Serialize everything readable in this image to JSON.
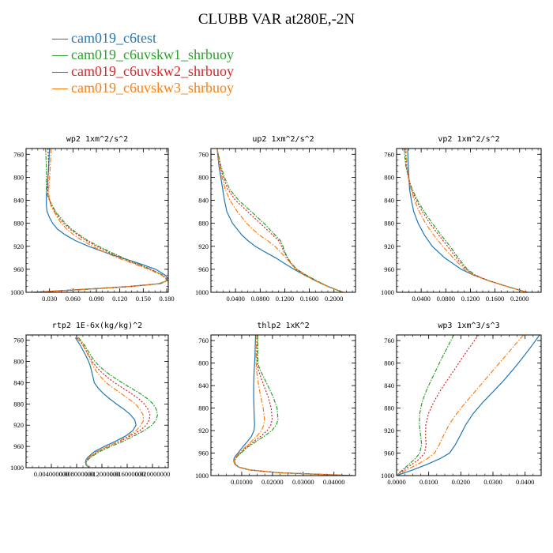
{
  "title": "CLUBB VAR at280E,-2N",
  "legend": [
    {
      "label": "cam019_c6test",
      "color": "#1f77b4"
    },
    {
      "label": "cam019_c6uvskw1_shrbuoy",
      "color": "#2ca02c"
    },
    {
      "label": "cam019_c6uvskw2_shrbuoy",
      "color": "#d62728"
    },
    {
      "label": "cam019_c6uvskw3_shrbuoy",
      "color": "#ff7f0e"
    }
  ],
  "chart_data": [
    {
      "type": "line",
      "title": "wp2   1xm^2/s^2",
      "xlim": [
        0.0,
        0.182
      ],
      "ylim": [
        1000,
        750
      ],
      "xticks": [
        "0.030",
        "0.060",
        "0.090",
        "0.120",
        "0.150",
        "0.180"
      ],
      "yticks": [
        "760",
        "800",
        "840",
        "880",
        "920",
        "960",
        "1000"
      ],
      "y": [
        750,
        780,
        800,
        820,
        830,
        840,
        850,
        860,
        870,
        880,
        890,
        900,
        910,
        920,
        930,
        940,
        950,
        960,
        970,
        975,
        980,
        985,
        990,
        995,
        1000
      ],
      "series": [
        {
          "name": "cam019_c6test",
          "values": [
            0.03,
            0.029,
            0.028,
            0.027,
            0.026,
            0.026,
            0.026,
            0.027,
            0.03,
            0.034,
            0.04,
            0.05,
            0.063,
            0.08,
            0.1,
            0.122,
            0.145,
            0.166,
            0.178,
            0.181,
            0.18,
            0.17,
            0.13,
            0.07,
            0.01
          ]
        },
        {
          "name": "cam019_c6uvskw1_shrbuoy",
          "values": [
            0.025,
            0.026,
            0.026,
            0.026,
            0.027,
            0.03,
            0.034,
            0.038,
            0.044,
            0.05,
            0.058,
            0.068,
            0.079,
            0.093,
            0.108,
            0.124,
            0.142,
            0.16,
            0.175,
            0.179,
            0.18,
            0.172,
            0.135,
            0.075,
            0.01
          ]
        },
        {
          "name": "cam019_c6uvskw2_shrbuoy",
          "values": [
            0.028,
            0.029,
            0.028,
            0.028,
            0.028,
            0.03,
            0.033,
            0.037,
            0.042,
            0.048,
            0.056,
            0.066,
            0.077,
            0.09,
            0.105,
            0.121,
            0.14,
            0.159,
            0.174,
            0.179,
            0.18,
            0.171,
            0.133,
            0.073,
            0.01
          ]
        },
        {
          "name": "cam019_c6uvskw3_shrbuoy",
          "values": [
            0.032,
            0.031,
            0.03,
            0.029,
            0.029,
            0.03,
            0.032,
            0.036,
            0.04,
            0.045,
            0.052,
            0.061,
            0.072,
            0.085,
            0.1,
            0.117,
            0.137,
            0.157,
            0.173,
            0.178,
            0.18,
            0.171,
            0.133,
            0.073,
            0.01
          ]
        }
      ]
    },
    {
      "type": "line",
      "title": "up2   1xm^2/s^2",
      "xlim": [
        0.0,
        0.235
      ],
      "ylim": [
        1000,
        750
      ],
      "xticks": [
        "0.0400",
        "0.0800",
        "0.1200",
        "0.1600",
        "0.2000"
      ],
      "yticks": [
        "760",
        "800",
        "840",
        "880",
        "920",
        "960",
        "1000"
      ],
      "y": [
        750,
        780,
        800,
        820,
        840,
        860,
        880,
        900,
        910,
        920,
        930,
        940,
        950,
        960,
        970,
        980,
        990,
        1000
      ],
      "series": [
        {
          "name": "cam019_c6test",
          "values": [
            0.01,
            0.013,
            0.016,
            0.019,
            0.022,
            0.026,
            0.035,
            0.05,
            0.06,
            0.072,
            0.088,
            0.105,
            0.12,
            0.135,
            0.152,
            0.17,
            0.19,
            0.215
          ]
        },
        {
          "name": "cam019_c6uvskw1_shrbuoy",
          "values": [
            0.01,
            0.016,
            0.022,
            0.03,
            0.045,
            0.066,
            0.086,
            0.104,
            0.113,
            0.117,
            0.12,
            0.125,
            0.131,
            0.14,
            0.155,
            0.172,
            0.191,
            0.215
          ]
        },
        {
          "name": "cam019_c6uvskw2_shrbuoy",
          "values": [
            0.01,
            0.015,
            0.02,
            0.027,
            0.04,
            0.06,
            0.08,
            0.1,
            0.11,
            0.115,
            0.119,
            0.124,
            0.13,
            0.139,
            0.154,
            0.171,
            0.19,
            0.215
          ]
        },
        {
          "name": "cam019_c6uvskw3_shrbuoy",
          "values": [
            0.01,
            0.014,
            0.018,
            0.023,
            0.031,
            0.043,
            0.058,
            0.078,
            0.092,
            0.104,
            0.113,
            0.122,
            0.13,
            0.138,
            0.153,
            0.17,
            0.19,
            0.215
          ]
        }
      ]
    },
    {
      "type": "line",
      "title": "vp2   1xm^2/s^2",
      "xlim": [
        0.0,
        0.235
      ],
      "ylim": [
        1000,
        750
      ],
      "xticks": [
        "0.0400",
        "0.0800",
        "0.1200",
        "0.1600",
        "0.2000"
      ],
      "yticks": [
        "760",
        "800",
        "840",
        "880",
        "920",
        "960",
        "1000"
      ],
      "y": [
        750,
        780,
        800,
        820,
        840,
        860,
        880,
        900,
        920,
        940,
        960,
        970,
        980,
        990,
        1000
      ],
      "series": [
        {
          "name": "cam019_c6test",
          "values": [
            0.018,
            0.019,
            0.02,
            0.021,
            0.024,
            0.028,
            0.035,
            0.045,
            0.058,
            0.078,
            0.105,
            0.125,
            0.15,
            0.18,
            0.212
          ]
        },
        {
          "name": "cam019_c6uvskw1_shrbuoy",
          "values": [
            0.012,
            0.015,
            0.019,
            0.025,
            0.034,
            0.045,
            0.058,
            0.072,
            0.087,
            0.1,
            0.115,
            0.128,
            0.15,
            0.18,
            0.212
          ]
        },
        {
          "name": "cam019_c6uvskw2_shrbuoy",
          "values": [
            0.014,
            0.016,
            0.019,
            0.024,
            0.032,
            0.042,
            0.054,
            0.068,
            0.083,
            0.097,
            0.113,
            0.127,
            0.15,
            0.18,
            0.212
          ]
        },
        {
          "name": "cam019_c6uvskw3_shrbuoy",
          "values": [
            0.015,
            0.017,
            0.019,
            0.023,
            0.029,
            0.037,
            0.047,
            0.06,
            0.075,
            0.092,
            0.11,
            0.126,
            0.149,
            0.18,
            0.212
          ]
        }
      ]
    },
    {
      "type": "line",
      "title": "rtp2   1E-6x(kg/kg)^2",
      "xlim": [
        0.0,
        0.0225
      ],
      "ylim": [
        1000,
        750
      ],
      "xticks": [
        "0.004000000",
        "0.008000000",
        "0.012000000",
        "0.016000000",
        "0.020000000"
      ],
      "yticks": [
        "760",
        "800",
        "840",
        "880",
        "920",
        "960",
        "1000"
      ],
      "y": [
        755,
        770,
        790,
        800,
        810,
        820,
        830,
        840,
        850,
        860,
        870,
        880,
        890,
        900,
        910,
        920,
        930,
        940,
        950,
        960,
        970,
        980,
        985,
        990,
        995,
        1000
      ],
      "series": [
        {
          "name": "cam019_c6test",
          "values": [
            0.0078,
            0.0086,
            0.0095,
            0.0099,
            0.0102,
            0.0104,
            0.0106,
            0.0108,
            0.0114,
            0.0122,
            0.0132,
            0.0143,
            0.0155,
            0.0165,
            0.0172,
            0.0174,
            0.0169,
            0.0158,
            0.0142,
            0.0124,
            0.0108,
            0.0098,
            0.0095,
            0.0094,
            0.0095,
            0.01
          ]
        },
        {
          "name": "cam019_c6uvskw1_shrbuoy",
          "values": [
            0.0083,
            0.0093,
            0.0103,
            0.0109,
            0.0117,
            0.0127,
            0.0139,
            0.0152,
            0.0166,
            0.018,
            0.0192,
            0.0201,
            0.0206,
            0.0208,
            0.0206,
            0.0199,
            0.0187,
            0.0171,
            0.0154,
            0.0134,
            0.0116,
            0.0103,
            0.0098,
            0.0095,
            0.0096,
            0.01
          ]
        },
        {
          "name": "cam019_c6uvskw2_shrbuoy",
          "values": [
            0.0081,
            0.0091,
            0.01,
            0.0105,
            0.0111,
            0.0119,
            0.0129,
            0.014,
            0.0153,
            0.0166,
            0.0178,
            0.0187,
            0.0193,
            0.0196,
            0.0195,
            0.019,
            0.018,
            0.0165,
            0.0149,
            0.013,
            0.0113,
            0.0101,
            0.0097,
            0.0095,
            0.0096,
            0.01
          ]
        },
        {
          "name": "cam019_c6uvskw3_shrbuoy",
          "values": [
            0.008,
            0.009,
            0.0099,
            0.0103,
            0.0107,
            0.0112,
            0.0119,
            0.0127,
            0.0138,
            0.015,
            0.0162,
            0.0173,
            0.018,
            0.0185,
            0.0186,
            0.0182,
            0.0174,
            0.0162,
            0.0147,
            0.0129,
            0.0112,
            0.01,
            0.0096,
            0.0095,
            0.0096,
            0.01
          ]
        }
      ]
    },
    {
      "type": "line",
      "title": "thlp2   1xK^2",
      "xlim": [
        0.0,
        0.047
      ],
      "ylim": [
        1000,
        750
      ],
      "xticks": [
        "0.01000",
        "0.02000",
        "0.03000",
        "0.04000"
      ],
      "yticks": [
        "760",
        "800",
        "840",
        "880",
        "920",
        "960",
        "1000"
      ],
      "y": [
        750,
        770,
        790,
        800,
        810,
        820,
        840,
        860,
        880,
        900,
        910,
        920,
        930,
        940,
        950,
        960,
        965,
        970,
        975,
        980,
        985,
        990,
        995,
        1000
      ],
      "series": [
        {
          "name": "cam019_c6test",
          "values": [
            0.0145,
            0.0144,
            0.0143,
            0.0142,
            0.0141,
            0.014,
            0.0139,
            0.0139,
            0.014,
            0.0141,
            0.0142,
            0.014,
            0.0132,
            0.0118,
            0.0102,
            0.0088,
            0.008,
            0.0075,
            0.0074,
            0.0078,
            0.009,
            0.0125,
            0.022,
            0.046
          ]
        },
        {
          "name": "cam019_c6uvskw1_shrbuoy",
          "values": [
            0.0152,
            0.0152,
            0.0152,
            0.0153,
            0.0158,
            0.0167,
            0.0185,
            0.0202,
            0.0215,
            0.0218,
            0.0213,
            0.0198,
            0.0173,
            0.0145,
            0.0118,
            0.0098,
            0.0087,
            0.008,
            0.0077,
            0.008,
            0.0092,
            0.0127,
            0.0222,
            0.046
          ]
        },
        {
          "name": "cam019_c6uvskw2_shrbuoy",
          "values": [
            0.0151,
            0.015,
            0.015,
            0.015,
            0.0153,
            0.0159,
            0.0172,
            0.0186,
            0.0196,
            0.0199,
            0.0195,
            0.0183,
            0.0162,
            0.0138,
            0.0114,
            0.0096,
            0.0085,
            0.0079,
            0.0076,
            0.0079,
            0.0091,
            0.0126,
            0.0221,
            0.046
          ]
        },
        {
          "name": "cam019_c6uvskw3_shrbuoy",
          "values": [
            0.0149,
            0.0148,
            0.0147,
            0.0147,
            0.0148,
            0.015,
            0.0155,
            0.0162,
            0.017,
            0.0174,
            0.0172,
            0.0164,
            0.0149,
            0.013,
            0.011,
            0.0093,
            0.0083,
            0.0077,
            0.0075,
            0.0078,
            0.009,
            0.0125,
            0.022,
            0.046
          ]
        }
      ]
    },
    {
      "type": "line",
      "title": "wp3   1xm^3/s^3",
      "xlim": [
        0.0,
        0.045
      ],
      "ylim": [
        1000,
        750
      ],
      "xticks": [
        "0.0000",
        "0.0100",
        "0.0200",
        "0.0300",
        "0.0400"
      ],
      "yticks": [
        "760",
        "800",
        "840",
        "880",
        "920",
        "960",
        "1000"
      ],
      "y": [
        750,
        770,
        790,
        810,
        830,
        850,
        870,
        890,
        910,
        930,
        945,
        960,
        970,
        980,
        990,
        1000
      ],
      "series": [
        {
          "name": "cam019_c6test",
          "values": [
            0.0445,
            0.042,
            0.0393,
            0.0365,
            0.0335,
            0.0302,
            0.0268,
            0.0238,
            0.0215,
            0.0197,
            0.0183,
            0.0165,
            0.0135,
            0.0095,
            0.005,
            0.0
          ]
        },
        {
          "name": "cam019_c6uvskw1_shrbuoy",
          "values": [
            0.0178,
            0.016,
            0.0142,
            0.0125,
            0.0108,
            0.0092,
            0.0079,
            0.0072,
            0.0071,
            0.0075,
            0.0078,
            0.0072,
            0.0058,
            0.0038,
            0.0018,
            0.0
          ]
        },
        {
          "name": "cam019_c6uvskw2_shrbuoy",
          "values": [
            0.0255,
            0.023,
            0.0205,
            0.0182,
            0.0158,
            0.0135,
            0.0115,
            0.0099,
            0.0091,
            0.009,
            0.0092,
            0.0087,
            0.0072,
            0.0048,
            0.0022,
            0.0
          ]
        },
        {
          "name": "cam019_c6uvskw3_shrbuoy",
          "values": [
            0.0395,
            0.0365,
            0.0335,
            0.0305,
            0.0275,
            0.0245,
            0.0215,
            0.0187,
            0.0163,
            0.0145,
            0.0133,
            0.0118,
            0.0096,
            0.0065,
            0.003,
            0.0
          ]
        }
      ]
    }
  ]
}
